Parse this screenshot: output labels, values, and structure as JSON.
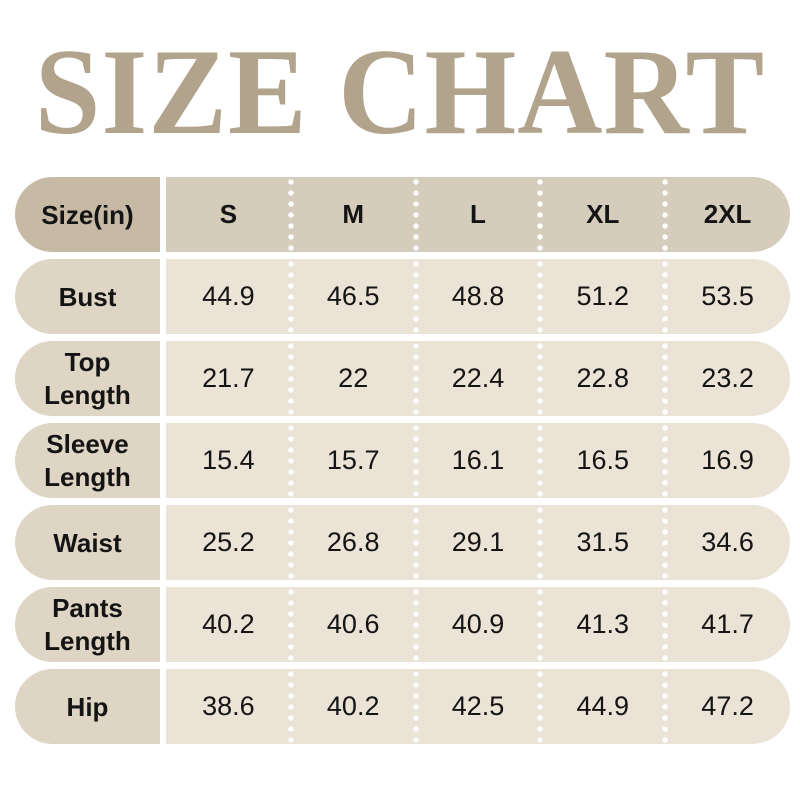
{
  "chart_data": {
    "type": "table",
    "title": "SIZE CHART",
    "corner_label": "Size(in)",
    "columns": [
      "S",
      "M",
      "L",
      "XL",
      "2XL"
    ],
    "rows": [
      {
        "label": "Bust",
        "values": [
          "44.9",
          "46.5",
          "48.8",
          "51.2",
          "53.5"
        ]
      },
      {
        "label": "Top Length",
        "values": [
          "21.7",
          "22",
          "22.4",
          "22.8",
          "23.2"
        ]
      },
      {
        "label": "Sleeve Length",
        "values": [
          "15.4",
          "15.7",
          "16.1",
          "16.5",
          "16.9"
        ]
      },
      {
        "label": "Waist",
        "values": [
          "25.2",
          "26.8",
          "29.1",
          "31.5",
          "34.6"
        ]
      },
      {
        "label": "Pants Length",
        "values": [
          "40.2",
          "40.6",
          "40.9",
          "41.3",
          "41.7"
        ]
      },
      {
        "label": "Hip",
        "values": [
          "38.6",
          "40.2",
          "42.5",
          "44.9",
          "47.2"
        ]
      }
    ]
  },
  "colors": {
    "title_text": "#b2a48c",
    "header_label_bg": "#c7baa5",
    "header_data_bg": "#d6ccbc",
    "row_label_bg": "#ded5c5",
    "row_data_bg": "#eae3d6",
    "table_text": "#141414",
    "divider_dots": "#ffffff"
  }
}
